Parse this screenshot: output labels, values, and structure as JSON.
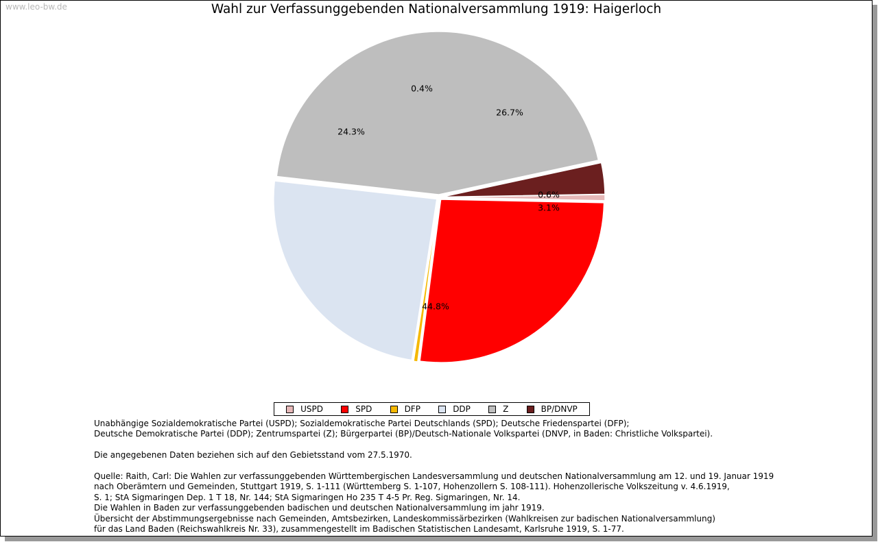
{
  "watermark": "www.leo-bw.de",
  "chart_data": {
    "type": "pie",
    "title": "Wahl zur Verfassunggebenden Nationalversammlung 1919: Haigerloch",
    "slices": [
      {
        "name": "USPD",
        "value": 0.6,
        "label": "0.6%",
        "color": "#e6b8b8"
      },
      {
        "name": "SPD",
        "value": 26.7,
        "label": "26.7%",
        "color": "#ff0000"
      },
      {
        "name": "DFP",
        "value": 0.4,
        "label": "0.4%",
        "color": "#f5b800"
      },
      {
        "name": "DDP",
        "value": 24.3,
        "label": "24.3%",
        "color": "#dbe4f1"
      },
      {
        "name": "Z",
        "value": 44.8,
        "label": "44.8%",
        "color": "#bebebe"
      },
      {
        "name": "BP/DNVP",
        "value": 3.1,
        "label": "3.1%",
        "color": "#6b1f1f"
      }
    ],
    "legend_position": "bottom"
  },
  "notes": [
    "Unabhängige Sozialdemokratische Partei (USPD); Sozialdemokratische Partei Deutschlands (SPD); Deutsche Friedenspartei (DFP);",
    "Deutsche Demokratische Partei (DDP); Zentrumspartei (Z); Bürgerpartei (BP)/Deutsch-Nationale Volkspartei (DNVP, in Baden: Christliche Volkspartei).",
    "",
    "Die angegebenen Daten beziehen sich auf den Gebietsstand vom 27.5.1970.",
    "",
    "Quelle: Raith, Carl: Die Wahlen zur verfassunggebenden Württembergischen Landesversammlung und deutschen Nationalversammlung am 12. und 19. Januar 1919",
    "nach Oberämtern und Gemeinden, Stuttgart 1919, S. 1-111 (Württemberg S. 1-107, Hohenzollern S. 108-111). Hohenzollerische Volkszeitung v. 4.6.1919,",
    "S. 1; StA Sigmaringen Dep. 1 T 18, Nr. 144; StA Sigmaringen Ho 235 T 4-5 Pr. Reg. Sigmaringen, Nr. 14.",
    "Die Wahlen in Baden zur verfassunggebenden badischen und deutschen Nationalversammlung im jahr 1919.",
    "Übersicht der Abstimmungsergebnisse nach Gemeinden, Amtsbezirken, Landeskommissärbezirken (Wahlkreisen zur badischen Nationalversammlung)",
    "für das Land Baden (Reichswahlkreis Nr. 33), zusammengestellt im Badischen Statistischen Landesamt, Karlsruhe 1919, S. 1-77."
  ]
}
